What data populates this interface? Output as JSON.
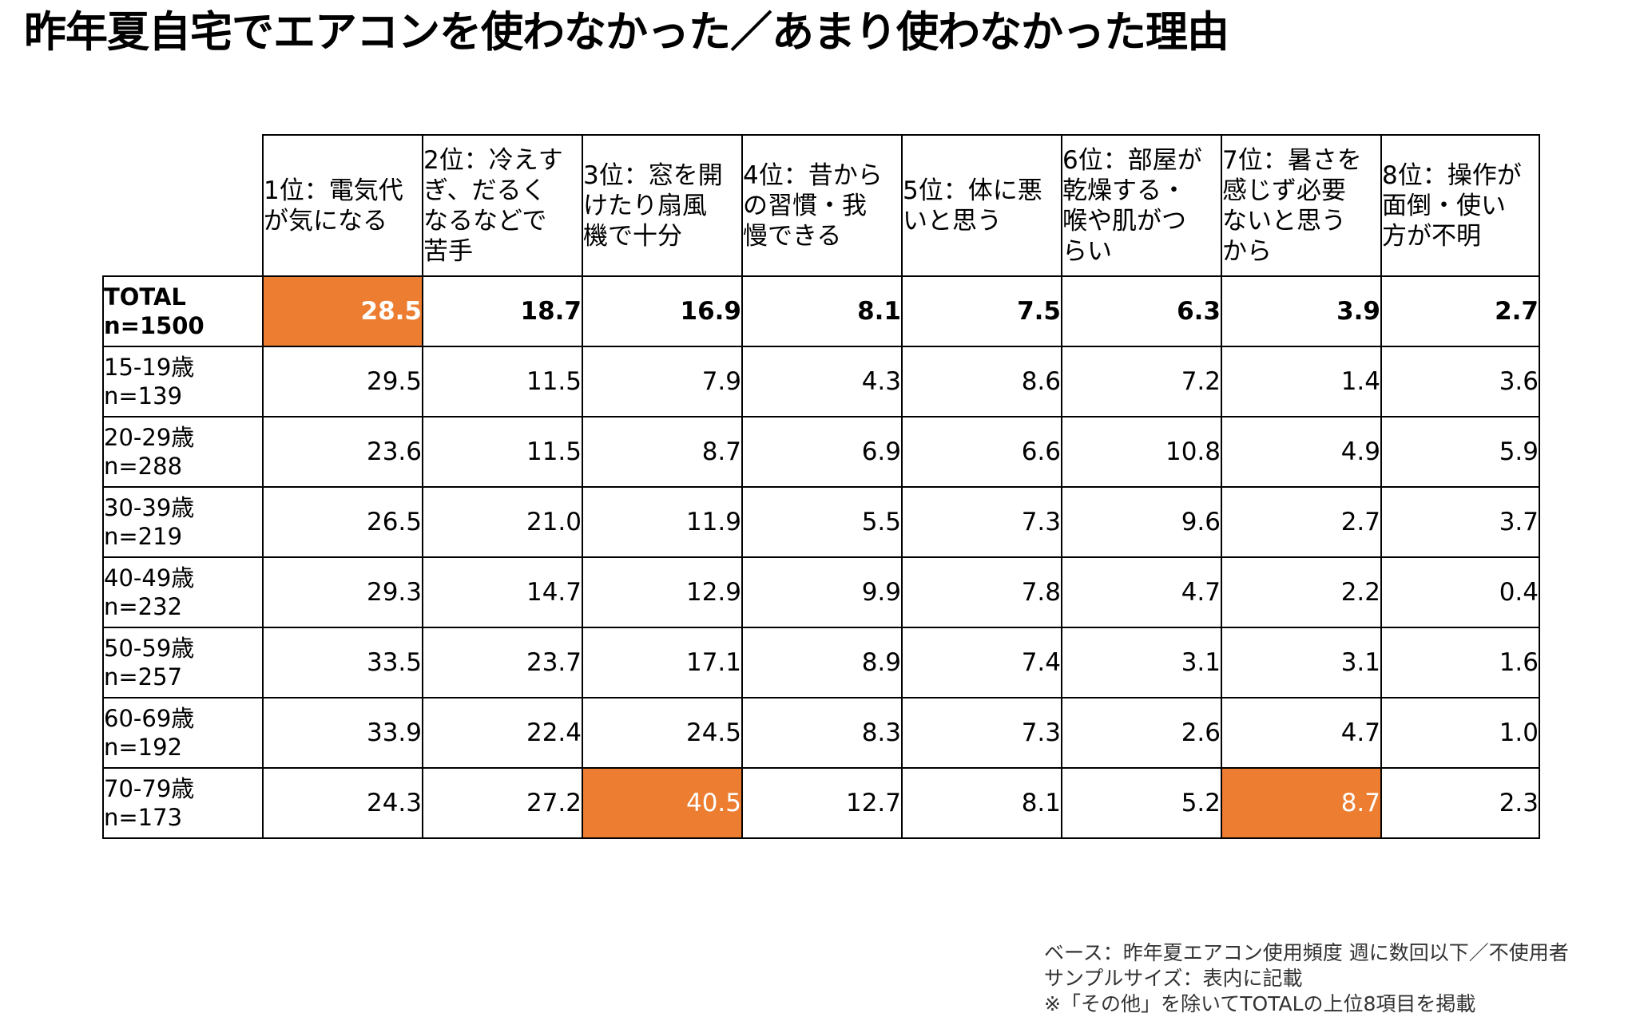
{
  "title": "昨年夏自宅でエアコンを使わなかった／あまり使わなかった理由",
  "highlight_color": "#ED7D31",
  "chart_data": {
    "type": "table",
    "columns": [
      "1位：電気代\nが気になる",
      "2位：冷えす\nぎ、だるく\nなるなどで\n苦手",
      "3位：窓を開\nけたり扇風\n機で十分",
      "4位：昔から\nの習慣・我\n慢できる",
      "5位：体に悪\nいと思う",
      "6位：部屋が\n乾燥する・\n喉や肌がつ\nらい",
      "7位：暑さを\n感じず必要\nないと思う\nから",
      "8位：操作が\n面倒・使い\n方が不明"
    ],
    "rows": [
      {
        "label": "TOTAL\nn=1500",
        "values": [
          "28.5",
          "18.7",
          "16.9",
          "8.1",
          "7.5",
          "6.3",
          "3.9",
          "2.7"
        ],
        "highlight": [
          0
        ],
        "bold": true
      },
      {
        "label": "15-19歳\nn=139",
        "values": [
          "29.5",
          "11.5",
          "7.9",
          "4.3",
          "8.6",
          "7.2",
          "1.4",
          "3.6"
        ],
        "highlight": []
      },
      {
        "label": "20-29歳\nn=288",
        "values": [
          "23.6",
          "11.5",
          "8.7",
          "6.9",
          "6.6",
          "10.8",
          "4.9",
          "5.9"
        ],
        "highlight": []
      },
      {
        "label": "30-39歳\nn=219",
        "values": [
          "26.5",
          "21.0",
          "11.9",
          "5.5",
          "7.3",
          "9.6",
          "2.7",
          "3.7"
        ],
        "highlight": []
      },
      {
        "label": "40-49歳\nn=232",
        "values": [
          "29.3",
          "14.7",
          "12.9",
          "9.9",
          "7.8",
          "4.7",
          "2.2",
          "0.4"
        ],
        "highlight": []
      },
      {
        "label": "50-59歳\nn=257",
        "values": [
          "33.5",
          "23.7",
          "17.1",
          "8.9",
          "7.4",
          "3.1",
          "3.1",
          "1.6"
        ],
        "highlight": []
      },
      {
        "label": "60-69歳\nn=192",
        "values": [
          "33.9",
          "22.4",
          "24.5",
          "8.3",
          "7.3",
          "2.6",
          "4.7",
          "1.0"
        ],
        "highlight": []
      },
      {
        "label": "70-79歳\nn=173",
        "values": [
          "24.3",
          "27.2",
          "40.5",
          "12.7",
          "8.1",
          "5.2",
          "8.7",
          "2.3"
        ],
        "highlight": [
          2,
          6
        ]
      }
    ]
  },
  "footnotes": [
    "ベース：昨年夏エアコン使用頻度 週に数回以下／不使用者",
    "サンプルサイズ：表内に記載",
    "※「その他」を除いてTOTALの上位8項目を掲載"
  ]
}
